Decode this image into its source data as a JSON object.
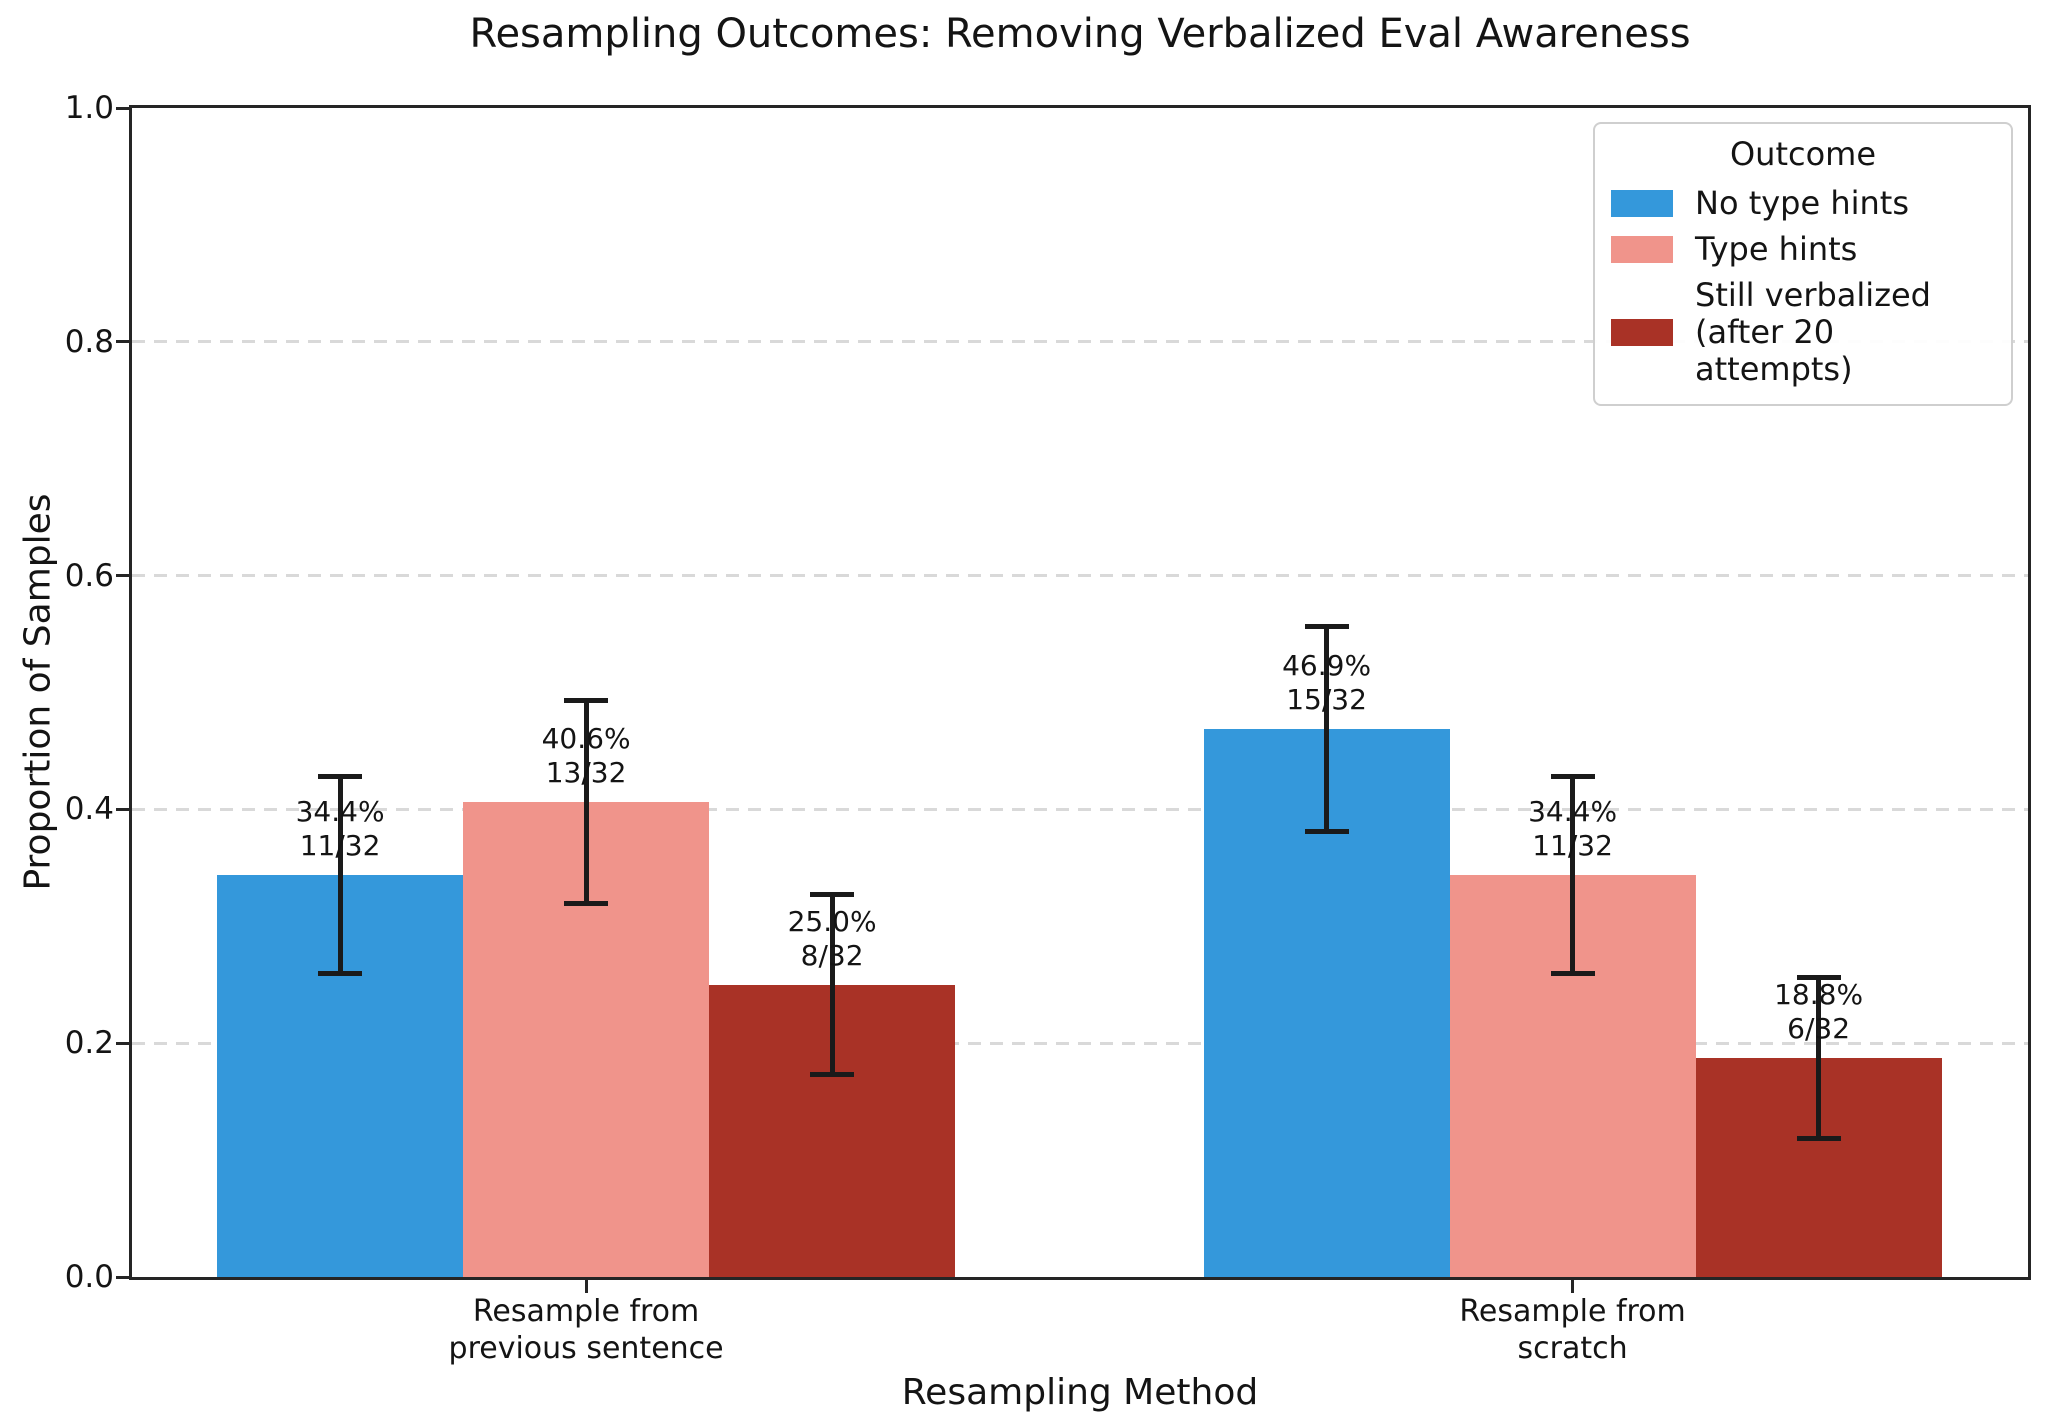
{
  "chart_data": {
    "type": "bar",
    "title": "Resampling Outcomes: Removing Verbalized Eval Awareness",
    "xlabel": "Resampling Method",
    "ylabel": "Proportion of Samples",
    "ylim": [
      0,
      1.0
    ],
    "ytick_labels": [
      "0.0",
      "0.2",
      "0.4",
      "0.6",
      "0.8",
      "1.0"
    ],
    "grid": {
      "axis": "y",
      "style": "dashed",
      "color": "#d9d9d9",
      "values": [
        0.2,
        0.4,
        0.6,
        0.8
      ]
    },
    "axis_color": "#252525",
    "error_bar_color": "#1a1a1a",
    "legend_position": "upper right",
    "categories": [
      {
        "label_lines": [
          "Resample from",
          "previous sentence"
        ]
      },
      {
        "label_lines": [
          "Resample from",
          "scratch"
        ]
      }
    ],
    "legend": {
      "title": "Outcome",
      "entries": [
        {
          "label_lines": [
            "No type hints"
          ],
          "color": "#3498db"
        },
        {
          "label_lines": [
            "Type hints"
          ],
          "color": "#f0948b"
        },
        {
          "label_lines": [
            "Still verbalized",
            "(after 20 attempts)"
          ],
          "color": "#a93226"
        }
      ]
    },
    "series": [
      {
        "name": "No type hints",
        "color": "#3498db",
        "values": [
          0.34375,
          0.46875
        ],
        "errors": [
          0.084,
          0.088
        ],
        "bar_labels": [
          {
            "pct": "34.4%",
            "frac": "11/32"
          },
          {
            "pct": "46.9%",
            "frac": "15/32"
          }
        ]
      },
      {
        "name": "Type hints",
        "color": "#f0948b",
        "values": [
          0.40625,
          0.34375
        ],
        "errors": [
          0.087,
          0.084
        ],
        "bar_labels": [
          {
            "pct": "40.6%",
            "frac": "13/32"
          },
          {
            "pct": "34.4%",
            "frac": "11/32"
          }
        ]
      },
      {
        "name": "Still verbalized (after 20 attempts)",
        "color": "#a93226",
        "values": [
          0.25,
          0.1875
        ],
        "errors": [
          0.077,
          0.069
        ],
        "bar_labels": [
          {
            "pct": "25.0%",
            "frac": "8/32"
          },
          {
            "pct": "18.8%",
            "frac": "6/32"
          }
        ]
      }
    ]
  }
}
